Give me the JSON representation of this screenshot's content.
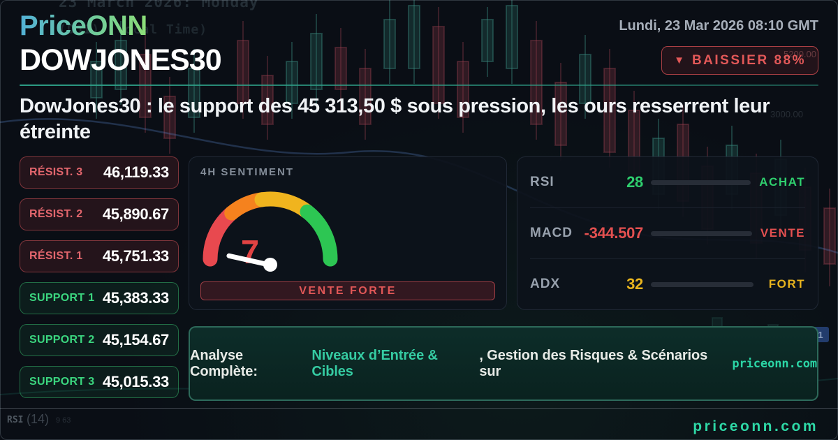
{
  "colors": {
    "accent": "#2dd4a6",
    "red": "#e35050",
    "green": "#2fcf6e",
    "gold": "#e8b41e",
    "orange": "#f5821e",
    "resist": "#e2666d",
    "support": "#3bd67f"
  },
  "brand": {
    "logo_left": "Price",
    "logo_right": "ONN",
    "footer_site": "priceonn.com"
  },
  "header": {
    "datetime": "Lundi, 23 Mar 2026 08:10 GMT",
    "symbol": "DOWJONES30",
    "badge": {
      "icon": "▼",
      "label": "BAISSIER 88%"
    }
  },
  "headline": "DowJones30 : le support des 45 313,50 $ sous pression, les ours resserrent leur étreinte",
  "levels": [
    {
      "label": "RÉSIST. 3",
      "value": "46,119.33",
      "type": "resistance"
    },
    {
      "label": "RÉSIST. 2",
      "value": "45,890.67",
      "type": "resistance"
    },
    {
      "label": "RÉSIST. 1",
      "value": "45,751.33",
      "type": "resistance"
    },
    {
      "label": "SUPPORT 1",
      "value": "45,383.33",
      "type": "support"
    },
    {
      "label": "SUPPORT 2",
      "value": "45,154.67",
      "type": "support"
    },
    {
      "label": "SUPPORT 3",
      "value": "45,015.33",
      "type": "support"
    }
  ],
  "sentiment": {
    "title": "4H SENTIMENT",
    "value": "7",
    "scale_max": 100,
    "signal": "VENTE FORTE"
  },
  "indicators": [
    {
      "name": "RSI",
      "value": "28",
      "signal": "ACHAT",
      "pct": 28,
      "color": "#2fcf6e"
    },
    {
      "name": "MACD",
      "value": "-344.507",
      "signal": "VENTE",
      "pct": 100,
      "color": "#e35050"
    },
    {
      "name": "ADX",
      "value": "32",
      "signal": "FORT",
      "pct": 32,
      "color": "#e8b41e"
    }
  ],
  "cta": {
    "prefix": "Analyse Complète: ",
    "highlight": "Niveaux d’Entrée & Cibles",
    "middle": ", Gestion des Risques & Scénarios sur ",
    "site": "priceonn.com"
  },
  "background": {
    "top_line1": "23 March 2026: Monday",
    "top_line2": "(DJI) (local Time)",
    "price_label1": "5200.00",
    "price_label2": "3000.00",
    "bottom_left1": "RSI",
    "bottom_left2": "(14)",
    "bottom_left3": "9 63",
    "blue_tag": "1"
  }
}
